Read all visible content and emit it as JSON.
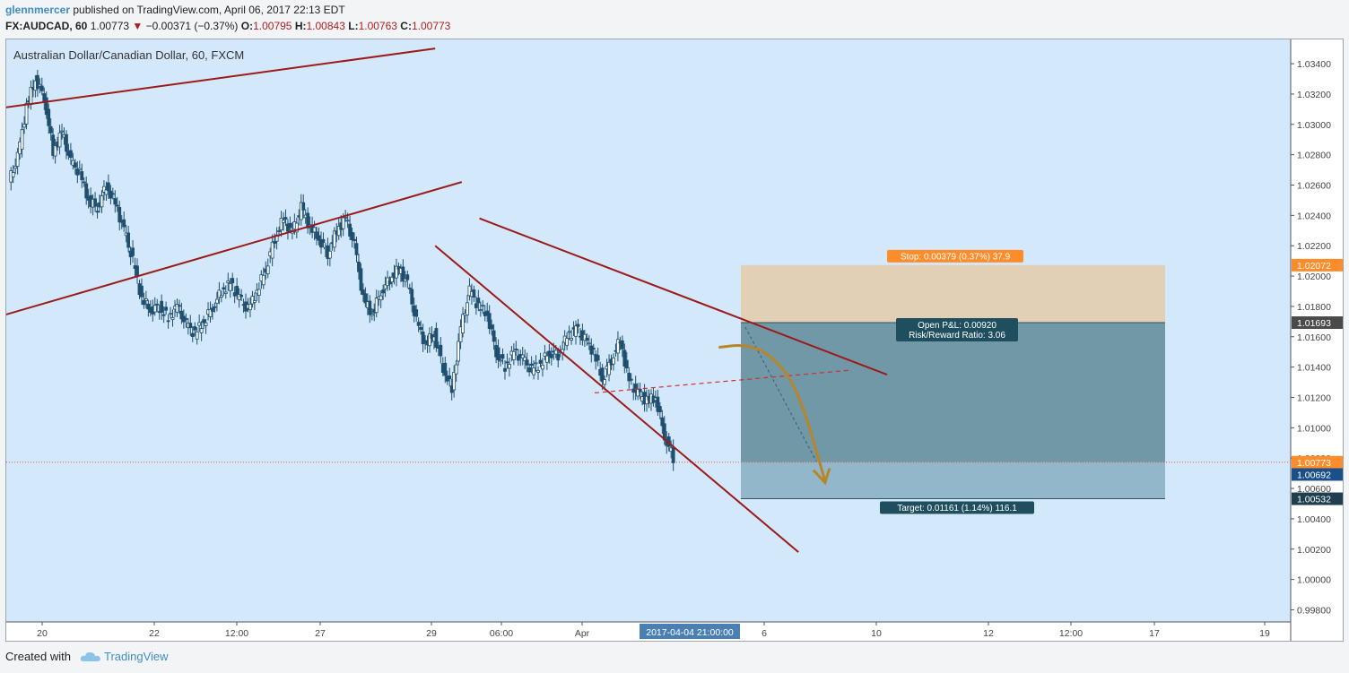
{
  "header": {
    "user": "glennmercer",
    "published": " published on TradingView.com, April 06, 2017 22:13 EDT",
    "symbol": "FX:AUDCAD, 60",
    "last": "1.00773",
    "change": "−0.00371 (−0.37%)",
    "o_label": "O:",
    "o": "1.00795",
    "h_label": "H:",
    "h": "1.00843",
    "l_label": "L:",
    "l": "1.00763",
    "c_label": "C:",
    "c": "1.00773"
  },
  "footer": {
    "created": "Created with",
    "brand": "TradingView"
  },
  "colors": {
    "background": "#d4e8fb",
    "candle": "#1f4f6e",
    "trendline": "#9b1b1b",
    "stop_zone": "#e1cfb1",
    "target_zone": "#6a93a2",
    "target_zone_light": "#8fb4c7",
    "forecast": "#b8862a",
    "price_label": "#ff8c2a"
  },
  "chart_data": {
    "type": "candlestick",
    "title": "Australian Dollar/Canadian Dollar, 60, FXCM",
    "y_axis_ticks": [
      "1.03400",
      "1.03200",
      "1.03000",
      "1.02800",
      "1.02600",
      "1.02400",
      "1.02200",
      "1.02000",
      "1.01800",
      "1.01600",
      "1.01400",
      "1.01200",
      "1.01000",
      "1.00800",
      "1.00600",
      "1.00400",
      "1.00200",
      "1.00000",
      "0.99800"
    ],
    "x_axis_ticks": [
      "20",
      "22",
      "12:00",
      "27",
      "29",
      "06:00",
      "Apr",
      "6",
      "10",
      "12",
      "12:00",
      "17",
      "19"
    ],
    "x_cursor_label": "2017-04-04 21:00:00",
    "ylim": [
      0.9972,
      1.0356
    ],
    "price_path": [
      1.0262,
      1.0278,
      1.0312,
      1.033,
      1.0318,
      1.0282,
      1.0295,
      1.0275,
      1.0268,
      1.025,
      1.0245,
      1.026,
      1.0248,
      1.023,
      1.021,
      1.0185,
      1.0178,
      1.018,
      1.0172,
      1.018,
      1.0168,
      1.0162,
      1.017,
      1.018,
      1.019,
      1.0195,
      1.0185,
      1.0178,
      1.019,
      1.0205,
      1.0225,
      1.0238,
      1.0228,
      1.0245,
      1.0232,
      1.0225,
      1.0215,
      1.023,
      1.0238,
      1.022,
      1.0185,
      1.0175,
      1.019,
      1.0198,
      1.0205,
      1.0195,
      1.017,
      1.0155,
      1.0162,
      1.014,
      1.0125,
      1.0165,
      1.019,
      1.018,
      1.0175,
      1.015,
      1.014,
      1.015,
      1.0145,
      1.0138,
      1.0142,
      1.015,
      1.0148,
      1.016,
      1.0165,
      1.0158,
      1.015,
      1.0132,
      1.0145,
      1.0158,
      1.013,
      1.0122,
      1.0118,
      1.012,
      1.0095,
      1.008
    ],
    "trendlines": [
      {
        "from": [
          -2,
          1.031
        ],
        "to": [
          48,
          1.035
        ]
      },
      {
        "from": [
          -2,
          1.0172
        ],
        "to": [
          51,
          1.0262
        ]
      },
      {
        "from": [
          53,
          1.0238
        ],
        "to": [
          99,
          1.0135
        ]
      },
      {
        "from": [
          48,
          1.022
        ],
        "to": [
          89,
          1.0018
        ]
      }
    ],
    "dashed_line": {
      "from": [
        66,
        1.0123
      ],
      "to": [
        95,
        1.0138
      ]
    },
    "position": {
      "entry": 1.01693,
      "stop": 1.02072,
      "target": 1.00532,
      "x_start": 82,
      "x_end": 129,
      "stop_label": "Stop: 0.00379 (0.37%) 37.9",
      "pnl_label": "Open P&L: 0.00920",
      "rr_label": "Risk/Reward Ratio: 3.06",
      "target_label": "Target: 0.01161 (1.14%) 116.1"
    },
    "price_labels": [
      {
        "value": 1.02072,
        "text": "1.02072",
        "color": "#ff8c2a"
      },
      {
        "value": 1.01693,
        "text": "1.01693",
        "color": "#4a4a4a"
      },
      {
        "value": 1.00773,
        "text": "1.00773",
        "color": "#ff8c2a"
      },
      {
        "value": 1.00692,
        "text": "1.00692",
        "color": "#1a4f8a"
      },
      {
        "value": 1.00532,
        "text": "1.00532",
        "color": "#1f3f4e"
      }
    ],
    "last_price": 1.00773,
    "forecast_path": [
      [
        80,
        1.0153
      ],
      [
        83,
        1.0155
      ],
      [
        86,
        1.0148
      ],
      [
        89,
        1.0125
      ],
      [
        92,
        1.0065
      ]
    ]
  }
}
